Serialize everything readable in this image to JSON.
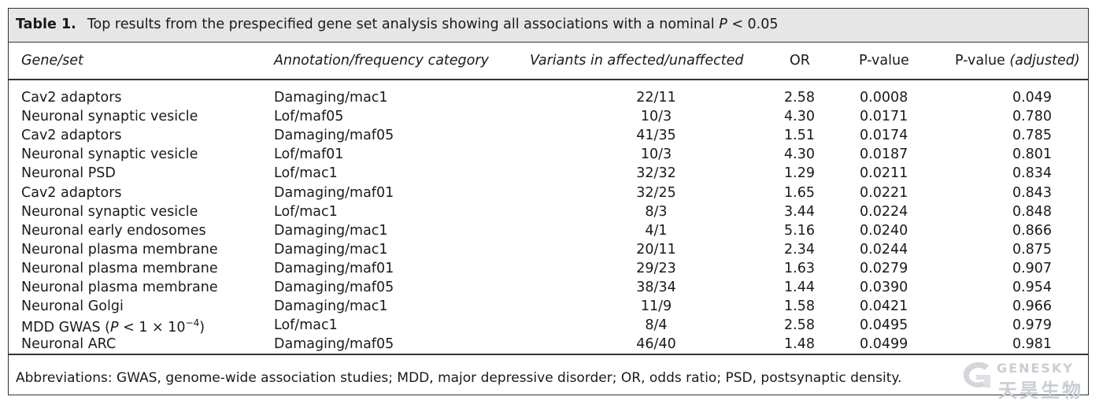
{
  "table": {
    "label": "Table 1.",
    "caption_main": "Top results from the prespecified gene set analysis showing all associations with a nominal ",
    "caption_p": "P",
    "caption_tail": " < 0.05",
    "headers": {
      "gene": "Gene/set",
      "annotation": "Annotation/frequency category",
      "variants": "Variants in affected/unaffected",
      "or": "OR",
      "pvalue": "P-value",
      "padj_plain": "P-value ",
      "padj_it": "(adjusted)"
    },
    "rows": [
      {
        "gene": "Cav2 adaptors",
        "annotation": "Damaging/mac1",
        "variants": "22/11",
        "or": "2.58",
        "p": "0.0008",
        "padj": "0.049"
      },
      {
        "gene": "Neuronal synaptic vesicle",
        "annotation": "Lof/maf05",
        "variants": "10/3",
        "or": "4.30",
        "p": "0.0171",
        "padj": "0.780"
      },
      {
        "gene": "Cav2 adaptors",
        "annotation": "Damaging/maf05",
        "variants": "41/35",
        "or": "1.51",
        "p": "0.0174",
        "padj": "0.785"
      },
      {
        "gene": "Neuronal synaptic vesicle",
        "annotation": "Lof/maf01",
        "variants": "10/3",
        "or": "4.30",
        "p": "0.0187",
        "padj": "0.801"
      },
      {
        "gene": "Neuronal PSD",
        "annotation": "Lof/mac1",
        "variants": "32/32",
        "or": "1.29",
        "p": "0.0211",
        "padj": "0.834"
      },
      {
        "gene": "Cav2 adaptors",
        "annotation": "Damaging/maf01",
        "variants": "32/25",
        "or": "1.65",
        "p": "0.0221",
        "padj": "0.843"
      },
      {
        "gene": "Neuronal synaptic vesicle",
        "annotation": "Lof/mac1",
        "variants": "8/3",
        "or": "3.44",
        "p": "0.0224",
        "padj": "0.848"
      },
      {
        "gene": "Neuronal early endosomes",
        "annotation": "Damaging/mac1",
        "variants": "4/1",
        "or": "5.16",
        "p": "0.0240",
        "padj": "0.866"
      },
      {
        "gene": "Neuronal plasma membrane",
        "annotation": "Damaging/mac1",
        "variants": "20/11",
        "or": "2.34",
        "p": "0.0244",
        "padj": "0.875"
      },
      {
        "gene": "Neuronal plasma membrane",
        "annotation": "Damaging/maf01",
        "variants": "29/23",
        "or": "1.63",
        "p": "0.0279",
        "padj": "0.907"
      },
      {
        "gene": "Neuronal plasma membrane",
        "annotation": "Damaging/maf05",
        "variants": "38/34",
        "or": "1.44",
        "p": "0.0390",
        "padj": "0.954"
      },
      {
        "gene": "Neuronal Golgi",
        "annotation": "Damaging/mac1",
        "variants": "11/9",
        "or": "1.58",
        "p": "0.0421",
        "padj": "0.966"
      },
      {
        "gene": "MDD GWAS (",
        "gene_p": "P",
        "gene_tail": " < 1 × 10",
        "gene_sup": "−4",
        "gene_close": ")",
        "annotation": "Lof/mac1",
        "variants": "8/4",
        "or": "2.58",
        "p": "0.0495",
        "padj": "0.979"
      },
      {
        "gene": "Neuronal ARC",
        "annotation": "Damaging/maf05",
        "variants": "46/40",
        "or": "1.48",
        "p": "0.0499",
        "padj": "0.981"
      }
    ],
    "footnote": "Abbreviations: GWAS, genome-wide association studies; MDD, major depressive disorder; OR, odds ratio; PSD, postsynaptic density."
  },
  "watermark": {
    "line1": "GENESKY",
    "line2": "天昊生物",
    "color": "#c9ced4"
  }
}
